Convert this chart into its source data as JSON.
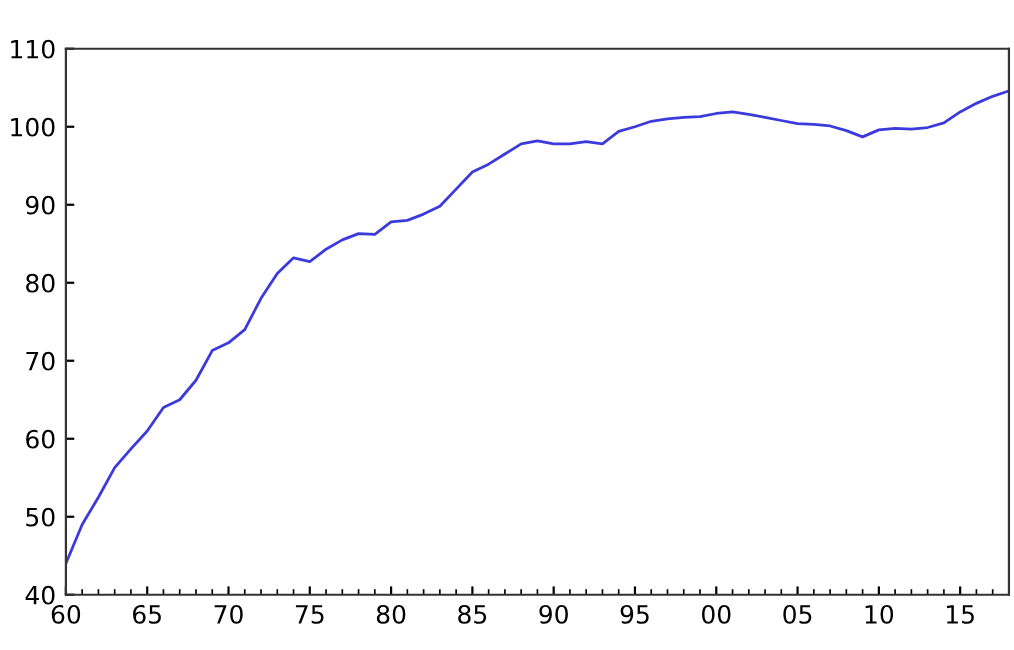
{
  "chart_data": {
    "type": "line",
    "x": [
      1960,
      1961,
      1962,
      1963,
      1964,
      1965,
      1966,
      1967,
      1968,
      1969,
      1970,
      1971,
      1972,
      1973,
      1974,
      1975,
      1976,
      1977,
      1978,
      1979,
      1980,
      1981,
      1982,
      1983,
      1984,
      1985,
      1986,
      1987,
      1988,
      1989,
      1990,
      1991,
      1992,
      1993,
      1994,
      1995,
      1996,
      1997,
      1998,
      1999,
      2000,
      2001,
      2002,
      2003,
      2004,
      2005,
      2006,
      2007,
      2008,
      2009,
      2010,
      2011,
      2012,
      2013,
      2014,
      2015,
      2016,
      2017,
      2018
    ],
    "series": [
      {
        "color": "#3b3bdd",
        "values": [
          44,
          49,
          52.5,
          56.3,
          58.7,
          61,
          64,
          65,
          67.5,
          71.3,
          72.3,
          74,
          78,
          81.2,
          83.2,
          82.7,
          84.3,
          85.5,
          86.3,
          86.2,
          87.8,
          88,
          88.8,
          89.8,
          92,
          94.2,
          95.2,
          96.5,
          97.8,
          98.2,
          97.8,
          97.8,
          98.1,
          97.8,
          99.4,
          100,
          100.7,
          101,
          101.2,
          101.3,
          101.7,
          101.9,
          101.6,
          101.2,
          100.8,
          100.4,
          100.3,
          100.1,
          99.5,
          98.7,
          99.6,
          99.8,
          99.7,
          99.9,
          100.5,
          101.9,
          103,
          103.9,
          104.6
        ]
      }
    ],
    "xlim": [
      1960,
      2018
    ],
    "xticks": [
      {
        "value": 1960,
        "label": "60"
      },
      {
        "value": 1965,
        "label": "65"
      },
      {
        "value": 1970,
        "label": "70"
      },
      {
        "value": 1975,
        "label": "75"
      },
      {
        "value": 1980,
        "label": "80"
      },
      {
        "value": 1985,
        "label": "85"
      },
      {
        "value": 1990,
        "label": "90"
      },
      {
        "value": 1995,
        "label": "95"
      },
      {
        "value": 2000,
        "label": "00"
      },
      {
        "value": 2005,
        "label": "05"
      },
      {
        "value": 2010,
        "label": "10"
      },
      {
        "value": 2015,
        "label": "15"
      }
    ],
    "ylim": [
      40,
      110
    ],
    "yticks": [
      40,
      50,
      60,
      70,
      80,
      90,
      100,
      110
    ],
    "grid": false,
    "marker": "none",
    "line_style": "solid"
  }
}
